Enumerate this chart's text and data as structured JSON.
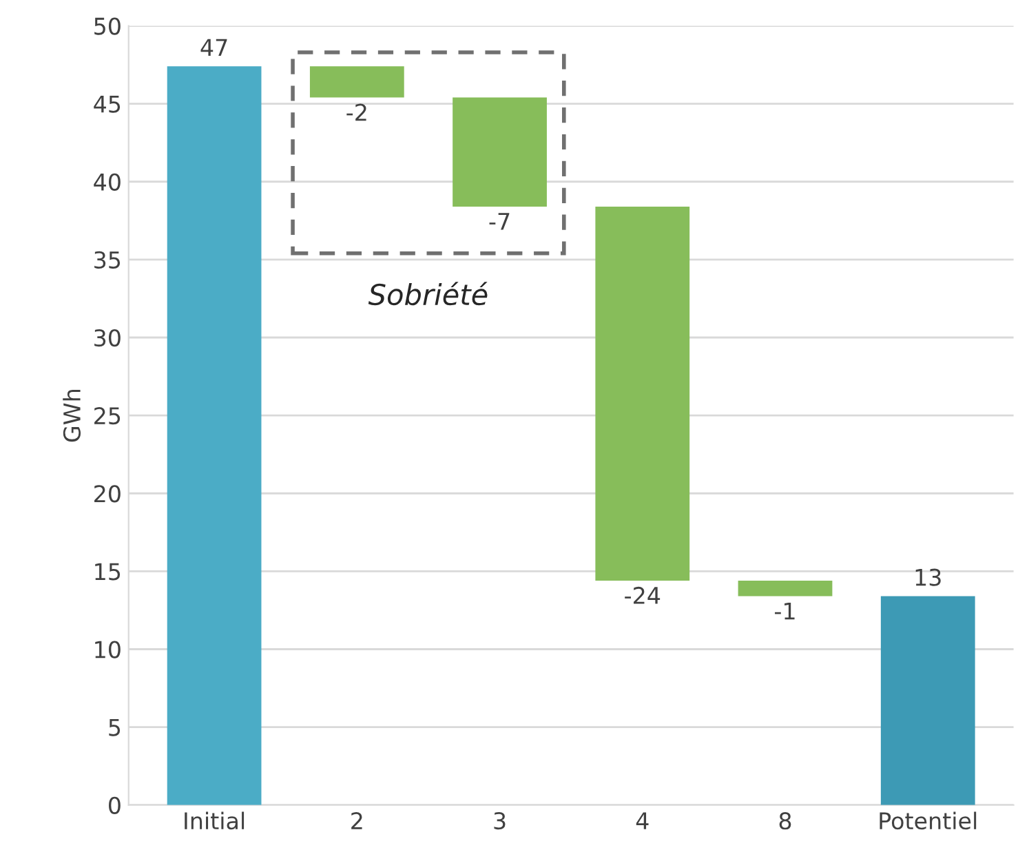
{
  "chart_data": {
    "type": "bar",
    "ylabel": "GWh",
    "categories": [
      "Initial",
      "2",
      "3",
      "4",
      "8",
      "Potentiel"
    ],
    "base": [
      0,
      47.4,
      45.4,
      38.4,
      14.4,
      0
    ],
    "values": [
      47.4,
      -2,
      -7,
      -24,
      -1,
      13.4
    ],
    "colors": [
      "#4bacc6",
      "#87bd5a",
      "#87bd5a",
      "#87bd5a",
      "#87bd5a",
      "#3d9ab5"
    ],
    "value_labels": [
      "47",
      "-2",
      "-7",
      "-24",
      "-1",
      "13"
    ],
    "ylim": [
      0,
      50
    ],
    "yticks": [
      0,
      5,
      10,
      15,
      20,
      25,
      30,
      35,
      40,
      45,
      50
    ],
    "grid": "y",
    "annotations": [
      "Sobriété"
    ]
  }
}
